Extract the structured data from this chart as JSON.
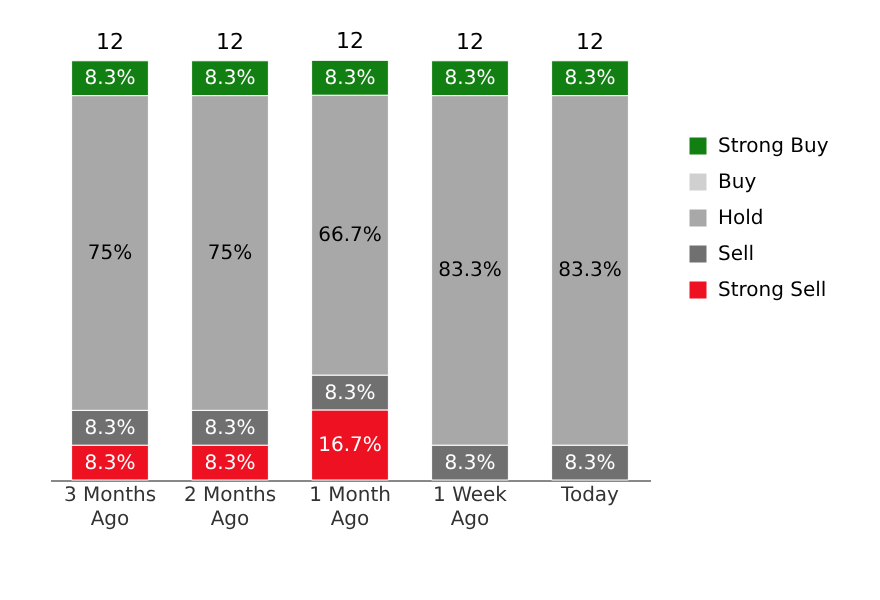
{
  "chart_data": {
    "type": "bar",
    "stacked": true,
    "categories": [
      "3 Months Ago",
      "2 Months Ago",
      "1 Month Ago",
      "1 Week Ago",
      "Today"
    ],
    "series": [
      {
        "name": "Strong Sell",
        "color": "#ee1122",
        "values": [
          8.3,
          8.3,
          16.7,
          null,
          null
        ],
        "value_labels": [
          "8.3%",
          "8.3%",
          "16.7%",
          null,
          null
        ]
      },
      {
        "name": "Sell",
        "color": "#707070",
        "values": [
          8.3,
          8.3,
          8.3,
          8.3,
          8.3
        ],
        "value_labels": [
          "8.3%",
          "8.3%",
          "8.3%",
          "8.3%",
          "8.3%"
        ]
      },
      {
        "name": "Hold",
        "color": "#a8a8a8",
        "values": [
          75,
          75,
          66.7,
          83.3,
          83.3
        ],
        "value_labels": [
          "75%",
          "75%",
          "66.7%",
          "83.3%",
          "83.3%"
        ]
      },
      {
        "name": "Buy",
        "color": "#d0d0d0",
        "values": [
          null,
          null,
          null,
          null,
          null
        ],
        "value_labels": [
          null,
          null,
          null,
          null,
          null
        ]
      },
      {
        "name": "Strong Buy",
        "color": "#127f12",
        "values": [
          8.3,
          8.3,
          8.3,
          8.3,
          8.3
        ],
        "value_labels": [
          "8.3%",
          "8.3%",
          "8.3%",
          "8.3%",
          "8.3%"
        ]
      }
    ],
    "annotations": [
      "12",
      "12",
      "12",
      "12",
      "12"
    ],
    "legend": "right",
    "grid": false
  }
}
